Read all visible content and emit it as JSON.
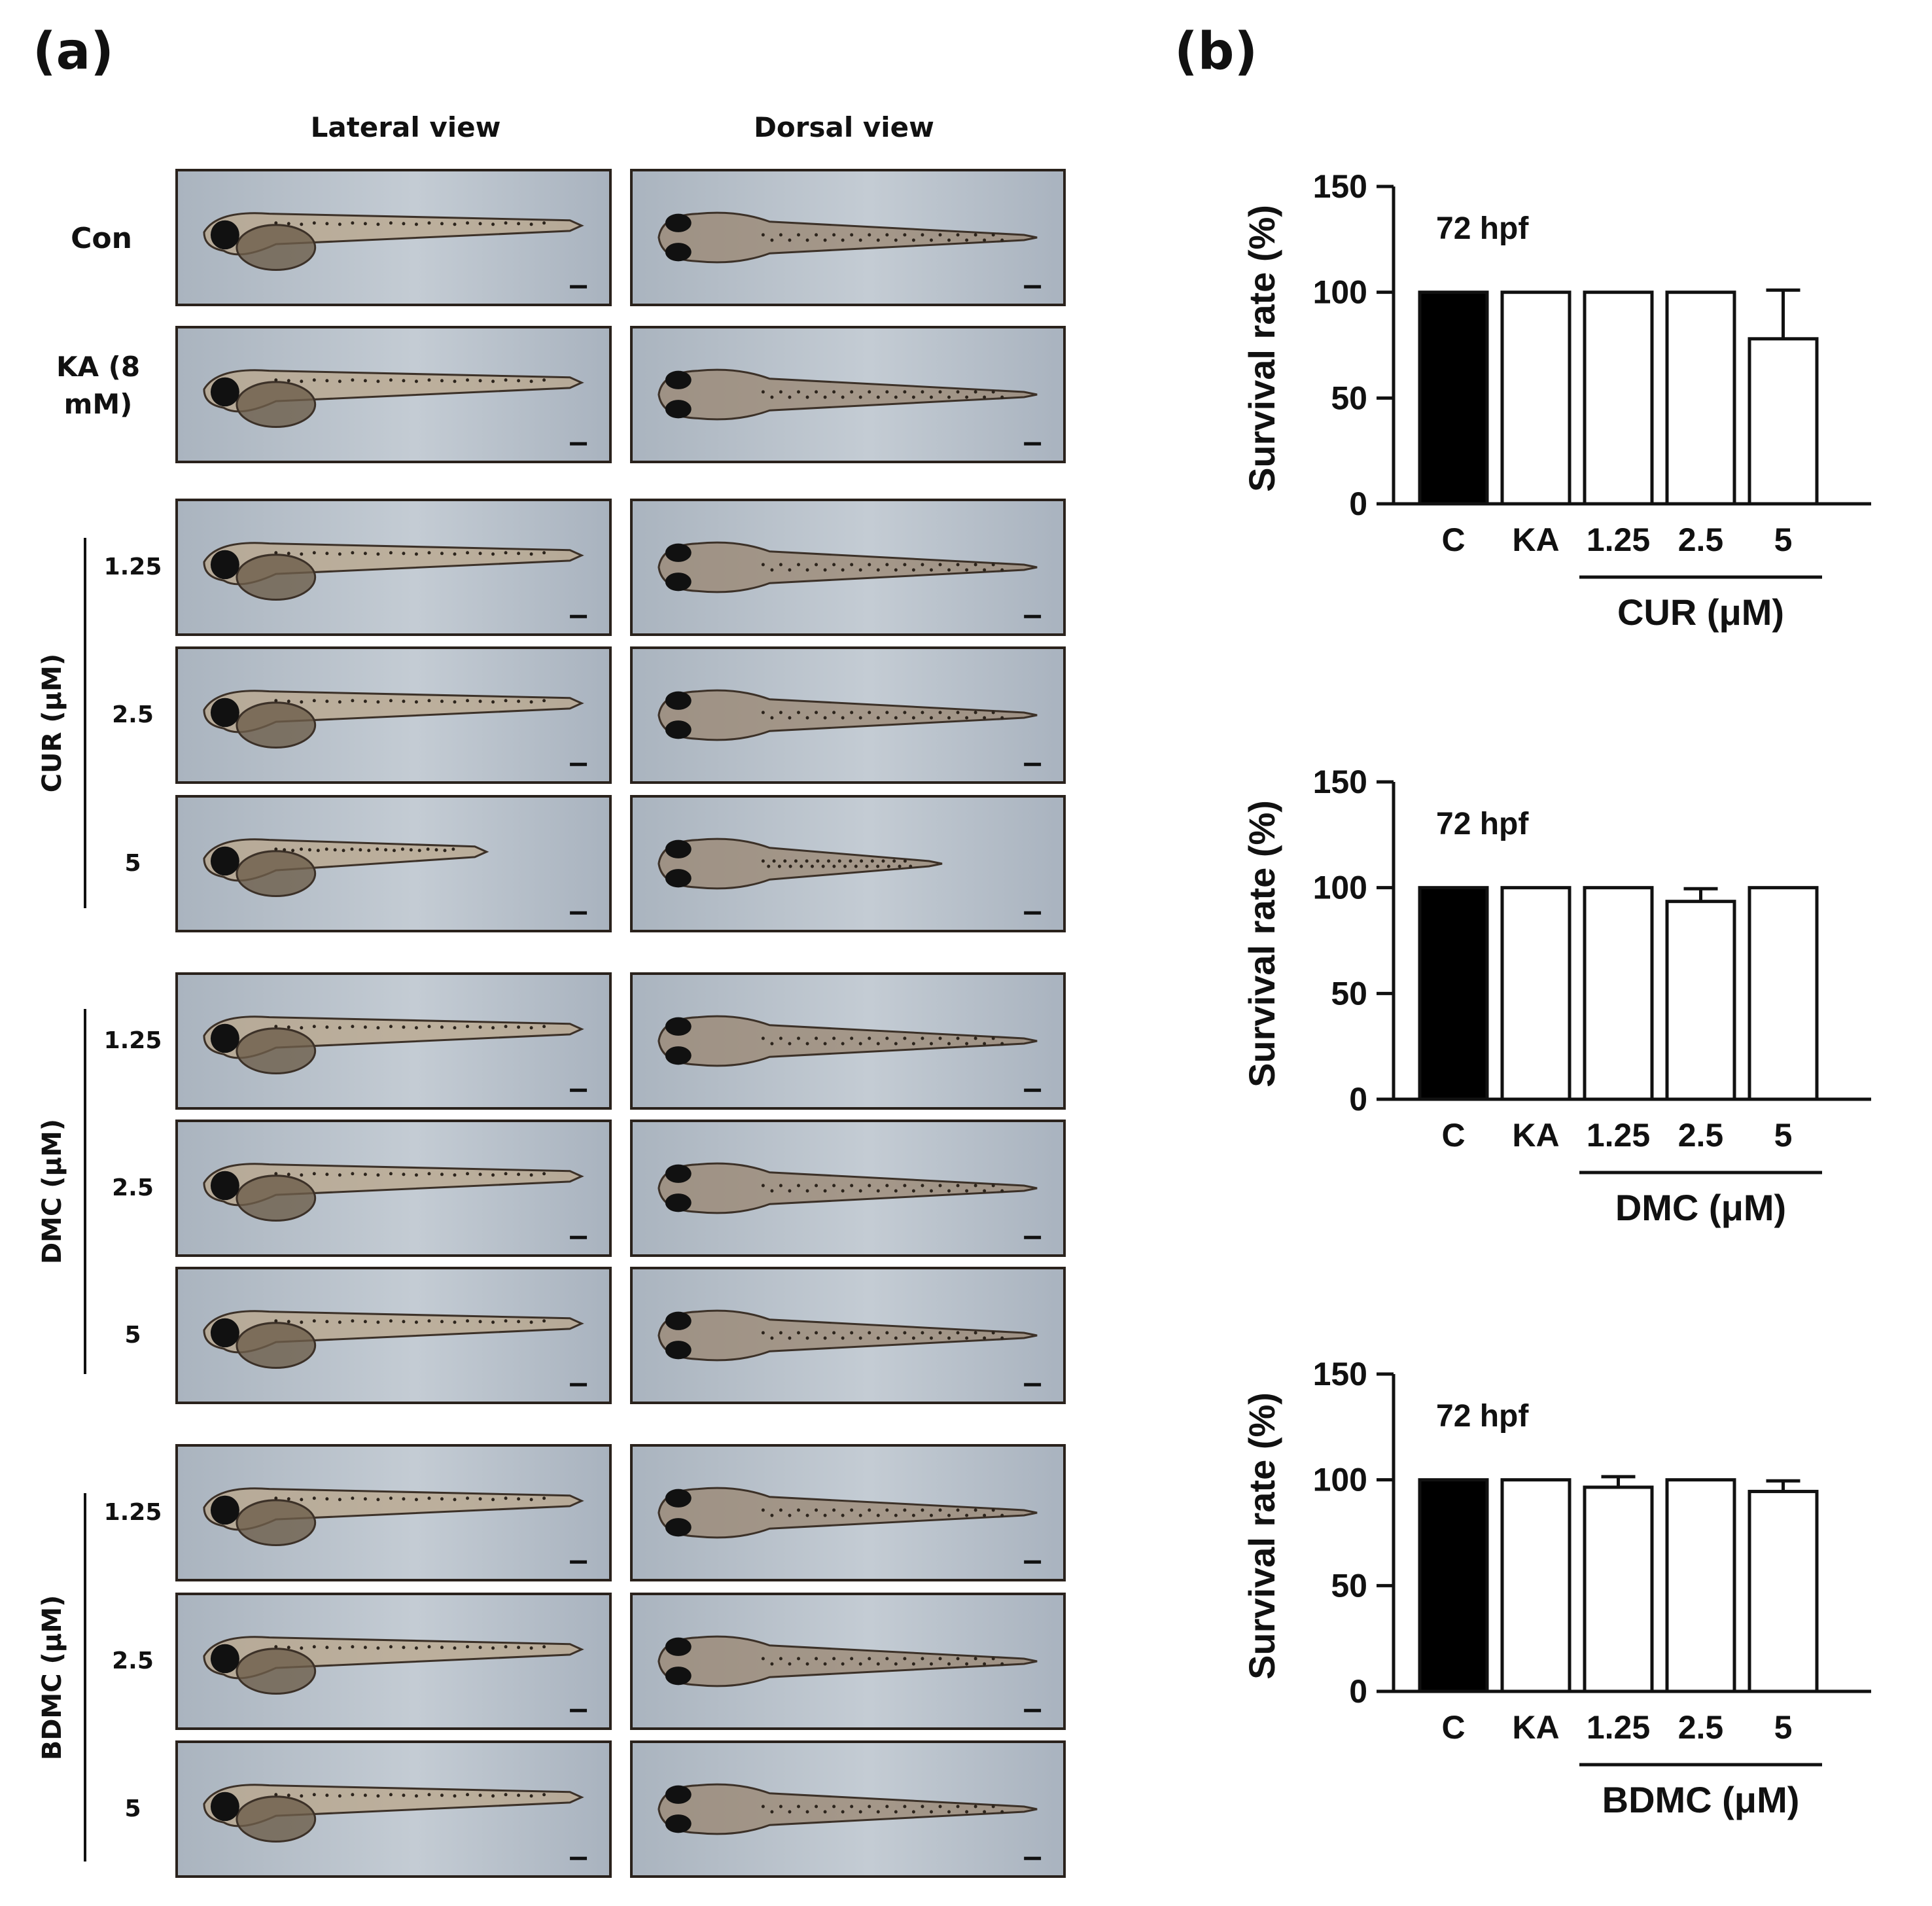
{
  "panel_a": {
    "label": "(a)",
    "headers": {
      "lateral": "Lateral view",
      "dorsal": "Dorsal view"
    },
    "rows": [
      {
        "id": "con",
        "label": "Con",
        "group": null
      },
      {
        "id": "ka",
        "label": "KA (8 mM)",
        "group": null
      },
      {
        "id": "cur-125",
        "label": "1.25",
        "group": "cur"
      },
      {
        "id": "cur-25",
        "label": "2.5",
        "group": "cur"
      },
      {
        "id": "cur-5",
        "label": "5",
        "group": "cur"
      },
      {
        "id": "dmc-125",
        "label": "1.25",
        "group": "dmc"
      },
      {
        "id": "dmc-25",
        "label": "2.5",
        "group": "dmc"
      },
      {
        "id": "dmc-5",
        "label": "5",
        "group": "dmc"
      },
      {
        "id": "bdmc-125",
        "label": "1.25",
        "group": "bdmc"
      },
      {
        "id": "bdmc-25",
        "label": "2.5",
        "group": "bdmc"
      },
      {
        "id": "bdmc-5",
        "label": "5",
        "group": "bdmc"
      }
    ],
    "groups": {
      "cur": "CUR (μM)",
      "dmc": "DMC (μM)",
      "bdmc": "BDMC (μM)"
    }
  },
  "panel_b": {
    "label": "(b)"
  },
  "colors": {
    "control_bar": "#000000",
    "treatment_bar": "#ffffff",
    "axis": "#111111",
    "photo_bg": "#c4ccd4",
    "photo_border": "#2a221c",
    "larva": "#5a4c3c"
  },
  "chart_data": [
    {
      "type": "bar",
      "title": "72 hpf",
      "ylabel": "Survival rate (%)",
      "ylim": [
        0,
        150
      ],
      "yticks": [
        0,
        50,
        100,
        150
      ],
      "categories": [
        "C",
        "KA",
        "1.25",
        "2.5",
        "5"
      ],
      "values": [
        100,
        100,
        100,
        100,
        78
      ],
      "errors": [
        0,
        0,
        0,
        0,
        23
      ],
      "group_label": "CUR (μM)"
    },
    {
      "type": "bar",
      "title": "72 hpf",
      "ylabel": "Survival rate (%)",
      "ylim": [
        0,
        150
      ],
      "yticks": [
        0,
        50,
        100,
        150
      ],
      "categories": [
        "C",
        "KA",
        "1.25",
        "2.5",
        "5"
      ],
      "values": [
        100,
        100,
        100,
        93.5,
        100
      ],
      "errors": [
        0,
        0,
        0,
        6,
        0
      ],
      "group_label": "DMC (μM)"
    },
    {
      "type": "bar",
      "title": "72 hpf",
      "ylabel": "Survival rate (%)",
      "ylim": [
        0,
        150
      ],
      "yticks": [
        0,
        50,
        100,
        150
      ],
      "categories": [
        "C",
        "KA",
        "1.25",
        "2.5",
        "5"
      ],
      "values": [
        100,
        100,
        96.5,
        100,
        94.5
      ],
      "errors": [
        0,
        0,
        5,
        0,
        5
      ],
      "group_label": "BDMC (μM)"
    }
  ]
}
